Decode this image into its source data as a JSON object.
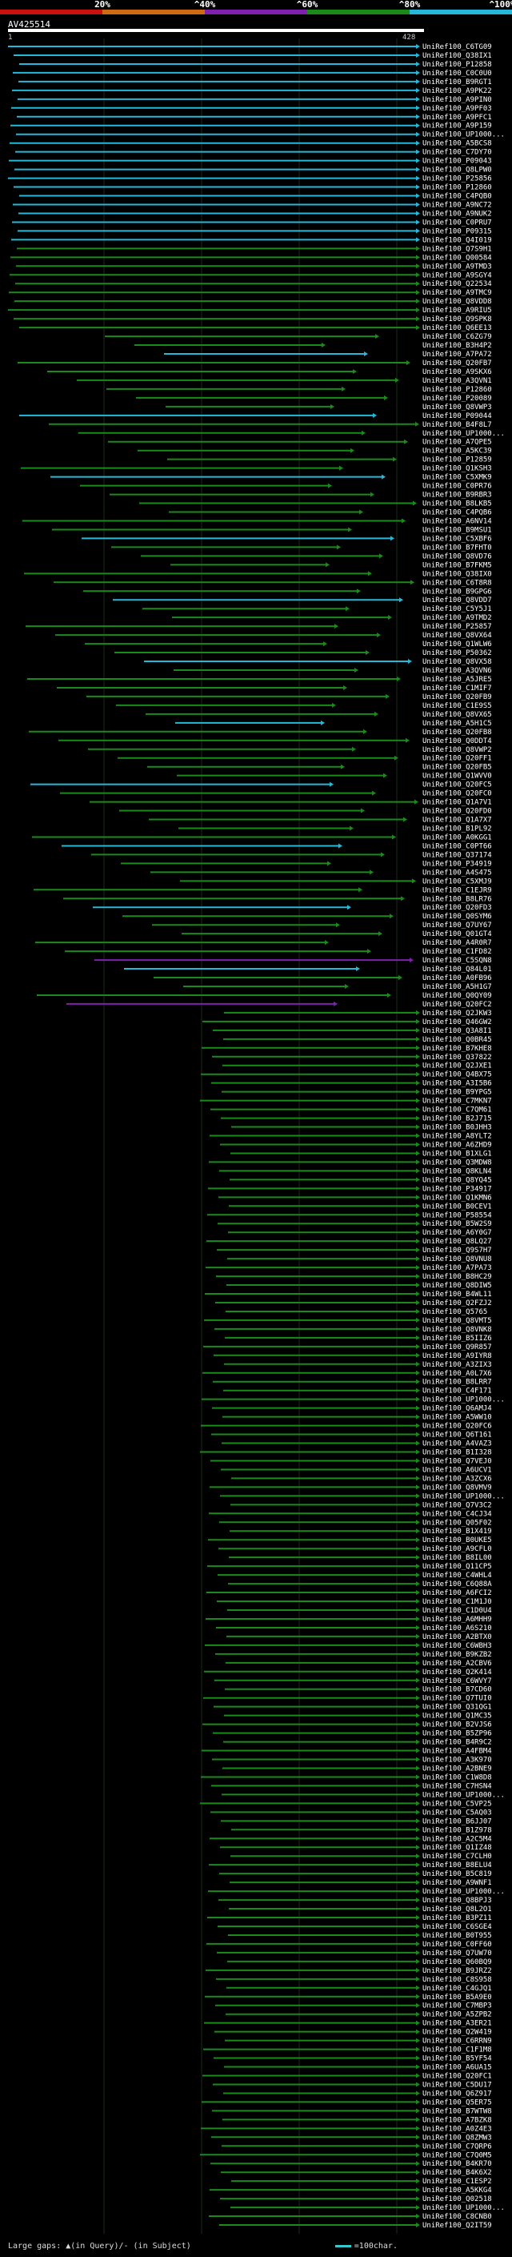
{
  "legend": {
    "percent_labels": [
      "20%",
      "^40%",
      "^60%",
      "^80%",
      "^100%"
    ],
    "colors": [
      "#cc1010",
      "#d06a10",
      "#8020b0",
      "#1a8a1a",
      "#25b8d8"
    ]
  },
  "query": {
    "name": "AV425514",
    "start": "1",
    "end": "428"
  },
  "footer": {
    "gaps_text": "Large gaps: ▲(in Query)/- (in Subject)",
    "scale_text": "=100char."
  },
  "hits": [
    "UniRef100_C6TG09",
    "UniRef100_Q38IX1",
    "UniRef100_P12858",
    "UniRef100_C0C0U0",
    "UniRef100_B9RGT1",
    "UniRef100_A9PK22",
    "UniRef100_A9PIN0",
    "UniRef100_A9PF03",
    "UniRef100_A9PFC1",
    "UniRef100_A9P159",
    "UniRef100_UP1000...",
    "UniRef100_A5BCS8",
    "UniRef100_C7DY70",
    "UniRef100_P09043",
    "UniRef100_Q8LPW0",
    "UniRef100_P25856",
    "UniRef100_P12860",
    "UniRef100_C4PQB0",
    "UniRef100_A9NC72",
    "UniRef100_A9NUK2",
    "UniRef100_C0PRU7",
    "UniRef100_P09315",
    "UniRef100_Q4I019",
    "UniRef100_Q7S9H1",
    "UniRef100_Q00584",
    "UniRef100_A9TMD3",
    "UniRef100_A9SGY4",
    "UniRef100_Q22534",
    "UniRef100_A9TMC9",
    "UniRef100_Q8VDD8",
    "UniRef100_A9RIU5",
    "UniRef100_Q9SPK8",
    "UniRef100_Q6EE13",
    "UniRef100_C6ZG79",
    "UniRef100_B3H4P2",
    "UniRef100_A7PA72",
    "UniRef100_Q20FB7",
    "UniRef100_A9SKX6",
    "UniRef100_A3QVN1",
    "UniRef100_P12860",
    "UniRef100_P20089",
    "UniRef100_Q8VWP3",
    "UniRef100_P09044",
    "UniRef100_B4F8L7",
    "UniRef100_UP1000...",
    "UniRef100_A7QPE5",
    "UniRef100_A5KC39",
    "UniRef100_P12859",
    "UniRef100_Q1KSH3",
    "UniRef100_C5XMK9",
    "UniRef100_C0PR76",
    "UniRef100_B9RBR3",
    "UniRef100_B8LKB5",
    "UniRef100_C4PQB6",
    "UniRef100_A6NV14",
    "UniRef100_B9MSU1",
    "UniRef100_C5XBF6",
    "UniRef100_B7FHT0",
    "UniRef100_Q8VD76",
    "UniRef100_B7FKM5",
    "UniRef100_Q38IX0",
    "UniRef100_C6T8R8",
    "UniRef100_B9GPG6",
    "UniRef100_Q8VDD7",
    "UniRef100_C5Y5J1",
    "UniRef100_A9TMD2",
    "UniRef100_P25857",
    "UniRef100_Q8VX64",
    "UniRef100_Q1WLW6",
    "UniRef100_P50362",
    "UniRef100_Q8VX58",
    "UniRef100_A3QVN6",
    "UniRef100_A5JRE5",
    "UniRef100_C1MIF7",
    "UniRef100_Q20FB9",
    "UniRef100_C1E9S5",
    "UniRef100_Q8VX65",
    "UniRef100_A5H1C5",
    "UniRef100_Q20FB8",
    "UniRef100_Q0DDT4",
    "UniRef100_Q8VWP2",
    "UniRef100_Q20FF1",
    "UniRef100_Q20FB5",
    "UniRef100_Q1WVV0",
    "UniRef100_Q20FC5",
    "UniRef100_Q20FC0",
    "UniRef100_Q1A7V1",
    "UniRef100_Q20FD0",
    "UniRef100_Q1A7X7",
    "UniRef100_B1PL92",
    "UniRef100_A0KGG1",
    "UniRef100_C0PT66",
    "UniRef100_Q37174",
    "UniRef100_P34919",
    "UniRef100_A4S475",
    "UniRef100_C5XMJ9",
    "UniRef100_C1EJR9",
    "UniRef100_B8LR76",
    "UniRef100_Q20FD3",
    "UniRef100_Q0SYM6",
    "UniRef100_Q7UY67",
    "UniRef100_Q01GT4",
    "UniRef100_A4R0R7",
    "UniRef100_C1FD82",
    "UniRef100_C5SQN8",
    "UniRef100_Q84L01",
    "UniRef100_A0FB96",
    "UniRef100_A5H1G7",
    "UniRef100_Q0QY09",
    "UniRef100_Q20FC2",
    "UniRef100_Q2JKW3",
    "UniRef100_Q46GW2",
    "UniRef100_Q3A8I1",
    "UniRef100_Q0BR45",
    "UniRef100_B7KHE8",
    "UniRef100_Q37822",
    "UniRef100_Q2JXE1",
    "UniRef100_Q4BX75",
    "UniRef100_A3I5B6",
    "UniRef100_B9YPG5",
    "UniRef100_C7MKN7",
    "UniRef100_C7QM61",
    "UniRef100_B2J715",
    "UniRef100_B0JHH3",
    "UniRef100_A8YLT2",
    "UniRef100_A6ZHD9",
    "UniRef100_B1XLG1",
    "UniRef100_Q3MDW8",
    "UniRef100_Q8KLN4",
    "UniRef100_Q8YQ45",
    "UniRef100_P34917",
    "UniRef100_Q1KMN6",
    "UniRef100_B0CEV1",
    "UniRef100_P58554",
    "UniRef100_B5W2S9",
    "UniRef100_A6Y0G7",
    "UniRef100_Q8LQ27",
    "UniRef100_Q9S7H7",
    "UniRef100_Q8VNU8",
    "UniRef100_A7PA73",
    "UniRef100_B8HC29",
    "UniRef100_Q8DIW5",
    "UniRef100_B4WL11",
    "UniRef100_Q2FZJ2",
    "UniRef100_Q5765",
    "UniRef100_Q8VMT5",
    "UniRef100_Q8VNK8",
    "UniRef100_B5IIZ6",
    "UniRef100_Q9R857",
    "UniRef100_A9IYR8",
    "UniRef100_A3ZIX3",
    "UniRef100_A0L7X6",
    "UniRef100_B8LRR7",
    "UniRef100_C4F171",
    "UniRef100_UP1000...",
    "UniRef100_Q6AMJ4",
    "UniRef100_A5WW10",
    "UniRef100_Q20FC6",
    "UniRef100_Q6T161",
    "UniRef100_A4VAZ3",
    "UniRef100_B1I328",
    "UniRef100_Q7VEJ0",
    "UniRef100_A6UCV1",
    "UniRef100_A3ZCX6",
    "UniRef100_Q8VMV9",
    "UniRef100_UP1000...",
    "UniRef100_Q7V3C2",
    "UniRef100_C4CJ34",
    "UniRef100_Q05F02",
    "UniRef100_B1X419",
    "UniRef100_B0UKE5",
    "UniRef100_A9CFL0",
    "UniRef100_B8IL00",
    "UniRef100_Q11CP5",
    "UniRef100_C4WHL4",
    "UniRef100_C6Q88A",
    "UniRef100_A6FCI2",
    "UniRef100_C1M1J0",
    "UniRef100_C1D0U4",
    "UniRef100_A6MHH9",
    "UniRef100_A6S210",
    "UniRef100_A2BTX0",
    "UniRef100_C6WBH3",
    "UniRef100_B9KZB2",
    "UniRef100_A2CBV6",
    "UniRef100_Q2K414",
    "UniRef100_C6WVY7",
    "UniRef100_B7CD60",
    "UniRef100_Q7TUI0",
    "UniRef100_Q31QG1",
    "UniRef100_Q1MC35",
    "UniRef100_B2VJS6",
    "UniRef100_B5ZP96",
    "UniRef100_B4R9C2",
    "UniRef100_A4FBM4",
    "UniRef100_A3K970",
    "UniRef100_A2BNE9",
    "UniRef100_C1W8D8",
    "UniRef100_C7HSN4",
    "UniRef100_UP1000...",
    "UniRef100_C5VP25",
    "UniRef100_C5AQ03",
    "UniRef100_B6JJ07",
    "UniRef100_B1Z978",
    "UniRef100_A2C5M4",
    "UniRef100_Q1IZ48",
    "UniRef100_C7CLH0",
    "UniRef100_B8ELU4",
    "UniRef100_B5C819",
    "UniRef100_A9WNF1",
    "UniRef100_UP1000...",
    "UniRef100_Q8BPJ3",
    "UniRef100_Q8L2O1",
    "UniRef100_B3PZ11",
    "UniRef100_C6SGE4",
    "UniRef100_B0T955",
    "UniRef100_C0FF60",
    "UniRef100_Q7UW70",
    "UniRef100_Q60BQ9",
    "UniRef100_B9JRZ2",
    "UniRef100_C8S958",
    "UniRef100_C4GJQ1",
    "UniRef100_B5A9E0",
    "UniRef100_C7MBP3",
    "UniRef100_A5ZPB2",
    "UniRef100_A3ER21",
    "UniRef100_Q2W419",
    "UniRef100_C6RRN9",
    "UniRef100_C1F1M8",
    "UniRef100_B5YF54",
    "UniRef100_A6UA15",
    "UniRef100_Q20FC1",
    "UniRef100_C5DU17",
    "UniRef100_Q6Z917",
    "UniRef100_Q5ER75",
    "UniRef100_B7WTW8",
    "UniRef100_A7BZK8",
    "UniRef100_A0Z4E3",
    "UniRef100_Q8ZMW3",
    "UniRef100_C7QRP6",
    "UniRef100_C7Q0M5",
    "UniRef100_B4KR70",
    "UniRef100_B4K6X2",
    "UniRef100_C1ESP2",
    "UniRef100_A5KKG4",
    "UniRef100_Q02518",
    "UniRef100_UP1000...",
    "UniRef100_C8CNB0",
    "UniRef100_Q2IT59"
  ]
}
